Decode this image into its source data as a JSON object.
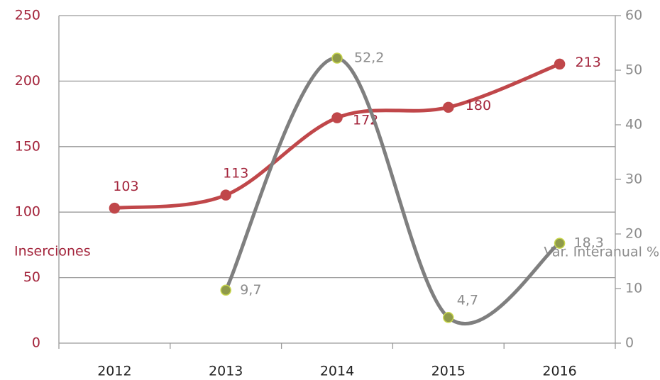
{
  "chart_data": {
    "type": "line",
    "categories": [
      "2012",
      "2013",
      "2014",
      "2015",
      "2016"
    ],
    "ylabel": "Inserciones",
    "y2label": "Var. Interanual %",
    "series": [
      {
        "name": "Inserciones",
        "color": "#c0474a",
        "marker_color": "#c0474a",
        "values": [
          103,
          113,
          172,
          180,
          213
        ]
      },
      {
        "name": "Var. Interanual %",
        "color": "#7f7f7f",
        "marker_color": "#8f9a4a",
        "marker_edge_color": "#c8d64a",
        "axis": "y2",
        "values": [
          null,
          9.7,
          52.2,
          4.7,
          18.3
        ],
        "value_labels": [
          null,
          "9,7",
          "52,2",
          "4,7",
          "18,3"
        ]
      }
    ],
    "ylim": [
      0,
      250
    ],
    "yticks": [
      0,
      50,
      100,
      150,
      200,
      250
    ],
    "y2lim": [
      0,
      60
    ],
    "y2ticks": [
      0,
      10,
      20,
      30,
      40,
      50,
      60
    ],
    "grid": true,
    "smooth": true
  }
}
